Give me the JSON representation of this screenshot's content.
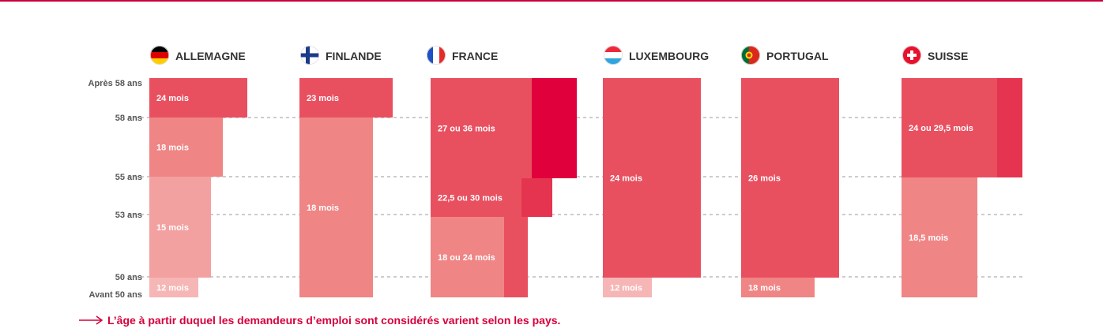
{
  "colors": {
    "accent": "#d5003c",
    "dark_red": "#e0003c",
    "crimson": "#e5344f",
    "red": "#e85060",
    "pink": "#f08585",
    "light_pink": "#f3a0a0",
    "pale_pink": "#f6b6b6",
    "grid": "#9a9a9a",
    "axis_text": "#555555",
    "country_text": "#333333"
  },
  "chart_data": {
    "type": "bar",
    "title": "",
    "xlabel": "",
    "ylabel": "",
    "y_ticks": [
      "Après 58 ans",
      "58 ans",
      "55 ans",
      "53 ans",
      "50 ans",
      "Avant 50 ans"
    ],
    "gridlines_at": [
      "58 ans",
      "55 ans",
      "53 ans",
      "50 ans"
    ],
    "countries": [
      {
        "name": "ALLEMAGNE",
        "flag_icon": "germany-flag-icon",
        "segments": [
          {
            "label": "24 mois",
            "months": 24,
            "from": "58 ans",
            "to": "Après 58 ans"
          },
          {
            "label": "18 mois",
            "months": 18,
            "from": "55 ans",
            "to": "58 ans"
          },
          {
            "label": "15 mois",
            "months": 15,
            "from": "50 ans",
            "to": "55 ans"
          },
          {
            "label": "12 mois",
            "months": 12,
            "from": "Avant 50 ans",
            "to": "50 ans"
          }
        ]
      },
      {
        "name": "FINLANDE",
        "flag_icon": "finland-flag-icon",
        "segments": [
          {
            "label": "23 mois",
            "months": 23,
            "from": "58 ans",
            "to": "Après 58 ans"
          },
          {
            "label": "18 mois",
            "months": 18,
            "from": "Avant 50 ans",
            "to": "58 ans"
          }
        ]
      },
      {
        "name": "FRANCE",
        "flag_icon": "france-flag-icon",
        "segments": [
          {
            "label": "27 ou 36 mois",
            "months": [
              27,
              36
            ],
            "from": "55 ans",
            "to": "Après 58 ans"
          },
          {
            "label": "22,5 ou 30 mois",
            "months": [
              22.5,
              30
            ],
            "from": "53 ans",
            "to": "55 ans"
          },
          {
            "label": "18 ou 24 mois",
            "months": [
              18,
              24
            ],
            "from": "Avant 50 ans",
            "to": "53 ans"
          }
        ]
      },
      {
        "name": "LUXEMBOURG",
        "flag_icon": "luxembourg-flag-icon",
        "segments": [
          {
            "label": "24 mois",
            "months": 24,
            "from": "50 ans",
            "to": "Après 58 ans"
          },
          {
            "label": "12 mois",
            "months": 12,
            "from": "Avant 50 ans",
            "to": "50 ans"
          }
        ]
      },
      {
        "name": "PORTUGAL",
        "flag_icon": "portugal-flag-icon",
        "segments": [
          {
            "label": "26 mois",
            "months": 26,
            "from": "50 ans",
            "to": "Après 58 ans"
          },
          {
            "label": "18 mois",
            "months": 18,
            "from": "Avant 50 ans",
            "to": "50 ans"
          }
        ]
      },
      {
        "name": "SUISSE",
        "flag_icon": "switzerland-flag-icon",
        "segments": [
          {
            "label": "24 ou 29,5 mois",
            "months": [
              24,
              29.5
            ],
            "from": "55 ans",
            "to": "Après 58 ans"
          },
          {
            "label": "18,5  mois",
            "months": 18.5,
            "from": "Avant 50 ans",
            "to": "55 ans"
          }
        ]
      }
    ]
  },
  "footnote": "L’âge à partir duquel les demandeurs d’emploi sont considérés varient selon les pays."
}
